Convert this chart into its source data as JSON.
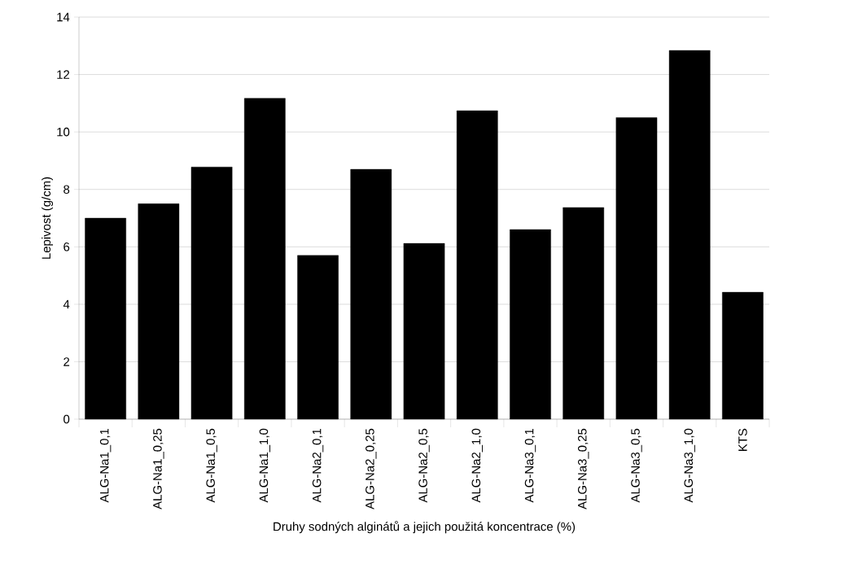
{
  "chart_data": {
    "type": "bar",
    "xlabel": "Druhy sodných alginátů a jejich použitá koncentrace (%)",
    "ylabel": "Lepivost (g/cm)",
    "categories": [
      "ALG-Na1_0,1",
      "ALG-Na1_0,25",
      "ALG-Na1_0,5",
      "ALG-Na1_1,0",
      "ALG-Na2_0,1",
      "ALG-Na2_0,25",
      "ALG-Na2_0,5",
      "ALG-Na2_1,0",
      "ALG-Na3_0,1",
      "ALG-Na3_0,25",
      "ALG-Na3_0,5",
      "ALG-Na3_1,0",
      "KTS"
    ],
    "values": [
      7.0,
      7.5,
      8.78,
      11.17,
      5.7,
      8.7,
      6.12,
      10.74,
      6.6,
      7.37,
      10.5,
      12.84,
      4.42
    ],
    "color": "#000000",
    "ylim": [
      0,
      14
    ],
    "yticks": [
      0,
      2,
      4,
      6,
      8,
      10,
      12,
      14
    ],
    "grid": "y"
  }
}
